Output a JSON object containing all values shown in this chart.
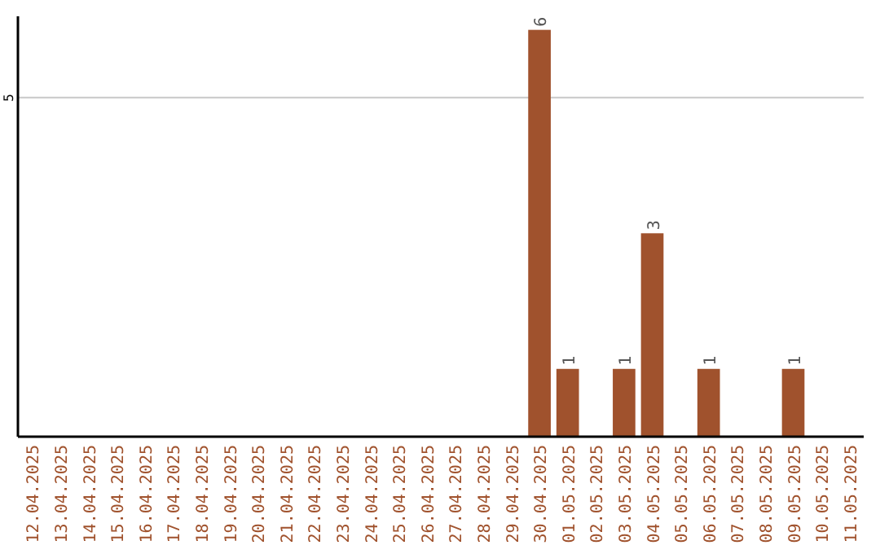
{
  "chart_data": {
    "type": "bar",
    "categories": [
      "12.04.2025",
      "13.04.2025",
      "14.04.2025",
      "15.04.2025",
      "16.04.2025",
      "17.04.2025",
      "18.04.2025",
      "19.04.2025",
      "20.04.2025",
      "21.04.2025",
      "22.04.2025",
      "23.04.2025",
      "24.04.2025",
      "25.04.2025",
      "26.04.2025",
      "27.04.2025",
      "28.04.2025",
      "29.04.2025",
      "30.04.2025",
      "01.05.2025",
      "02.05.2025",
      "03.05.2025",
      "04.05.2025",
      "05.05.2025",
      "06.05.2025",
      "07.05.2025",
      "08.05.2025",
      "09.05.2025",
      "10.05.2025",
      "11.05.2025"
    ],
    "values": [
      null,
      null,
      null,
      null,
      null,
      null,
      null,
      null,
      null,
      null,
      null,
      null,
      null,
      null,
      null,
      null,
      null,
      null,
      6,
      1,
      null,
      1,
      3,
      null,
      1,
      null,
      null,
      1,
      null,
      null
    ],
    "value_labels": [
      null,
      null,
      null,
      null,
      null,
      null,
      null,
      null,
      null,
      null,
      null,
      null,
      null,
      null,
      null,
      null,
      null,
      null,
      "6",
      "1",
      null,
      "1",
      "3",
      null,
      "1",
      null,
      null,
      "1",
      null,
      null
    ],
    "color": "#a0522d",
    "ylim": [
      0,
      6.2
    ],
    "yticks": [
      {
        "value": 0,
        "label": null
      },
      5
    ],
    "grid": "y"
  }
}
